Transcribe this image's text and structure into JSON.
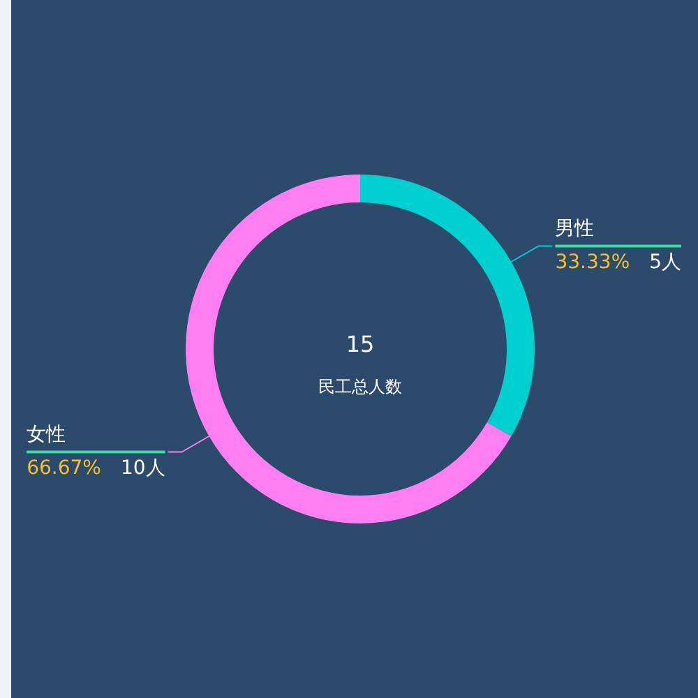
{
  "chart_data": {
    "type": "donut",
    "title": "15",
    "subtitle": "民工总人数",
    "categories": [
      "男性",
      "女性"
    ],
    "values": [
      5,
      10
    ],
    "colors": [
      "#00cfd0",
      "#ff7ff2"
    ],
    "value_labels": [
      "33.33%   5人",
      "66.67%   10人"
    ]
  }
}
